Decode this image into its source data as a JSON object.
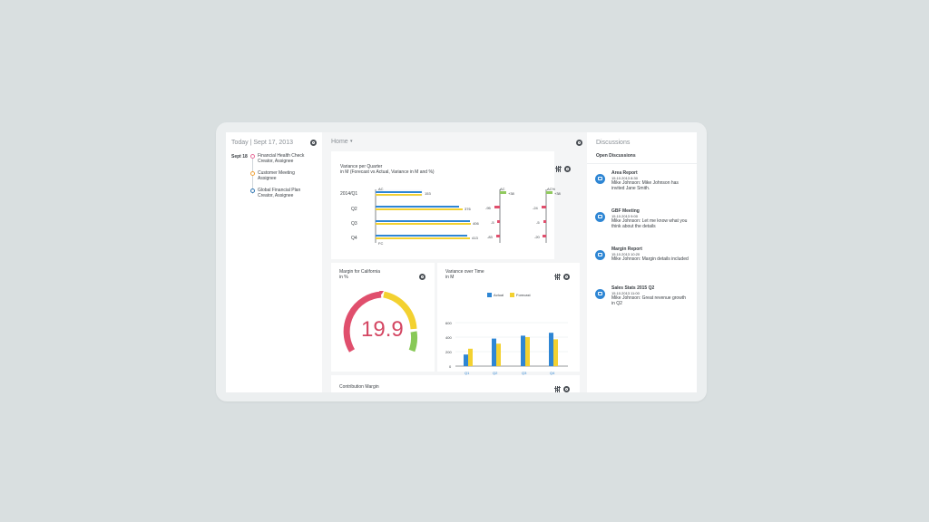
{
  "today": {
    "label": "Today | Sept 17, 2013",
    "date": "Sept 18"
  },
  "timeline": [
    {
      "title": "Financial Health Check",
      "sub": "Creator, Assignee",
      "color": "#e86f9b"
    },
    {
      "title": "Customer Meeting",
      "sub": "Assignee",
      "color": "#f0a23a"
    },
    {
      "title": "Global Financial Plan",
      "sub": "Creator, Assignee",
      "color": "#2f76b3"
    }
  ],
  "home": {
    "label": "Home"
  },
  "variance": {
    "title": "Variance per Quarter",
    "subtitle": "in M (Forecast vs Actual, Variance in M and %)",
    "ac": "AC",
    "fc": "FC",
    "ac_pct": "AC%",
    "rows": [
      {
        "label": "2014/Q1",
        "value": "153",
        "delta": "+38",
        "pct": "+38"
      },
      {
        "label": "Q2",
        "value": "376",
        "delta": "-95",
        "pct": "-24"
      },
      {
        "label": "Q3",
        "value": "406",
        "delta": "-5",
        "pct": "-5"
      },
      {
        "label": "Q4",
        "value": "413",
        "delta": "-83",
        "pct": "-20"
      }
    ]
  },
  "margin": {
    "title": "Margin for California",
    "subtitle": "in %",
    "value": "19.9"
  },
  "overtime": {
    "title": "Variance over Time",
    "subtitle": "in M",
    "legend": [
      {
        "name": "Actual",
        "color": "#2e86d4"
      },
      {
        "name": "Forecast",
        "color": "#f3d130"
      }
    ],
    "yticks": [
      "600",
      "400",
      "200",
      "0"
    ],
    "categories": [
      "Q1",
      "Q2",
      "Q3",
      "Q4"
    ],
    "actual": [
      160,
      380,
      420,
      460
    ],
    "forecast": [
      240,
      310,
      400,
      370
    ]
  },
  "contribution": {
    "title": "Contribution Margin"
  },
  "discussions": {
    "title": "Discussions",
    "open": "Open Discussions",
    "items": [
      {
        "title": "Area Report",
        "date": "15.10.2013 8:30",
        "text": "Mike Johnson: Mike Johnson has invited Jane Smith."
      },
      {
        "title": "GBF Meeting",
        "date": "15.10.2013 9:00",
        "text": "Mike Johnson: Let me know what you think about the details"
      },
      {
        "title": "Margin Report",
        "date": "15.10.2013 10:20",
        "text": "Mike Johnson: Margin details included"
      },
      {
        "title": "Sales Stats 2015 Q2",
        "date": "15.10.2013 11:00",
        "text": "Mike Johnson: Great revenue growth in Q2"
      }
    ]
  },
  "chart_data": {
    "type": "bar",
    "categories": [
      "Q1",
      "Q2",
      "Q3",
      "Q4"
    ],
    "series": [
      {
        "name": "Actual",
        "values": [
          160,
          380,
          420,
          460
        ]
      },
      {
        "name": "Forecast",
        "values": [
          240,
          310,
          400,
          370
        ]
      }
    ],
    "title": "Variance over Time",
    "ylabel": "in M",
    "ylim": [
      0,
      600
    ]
  }
}
